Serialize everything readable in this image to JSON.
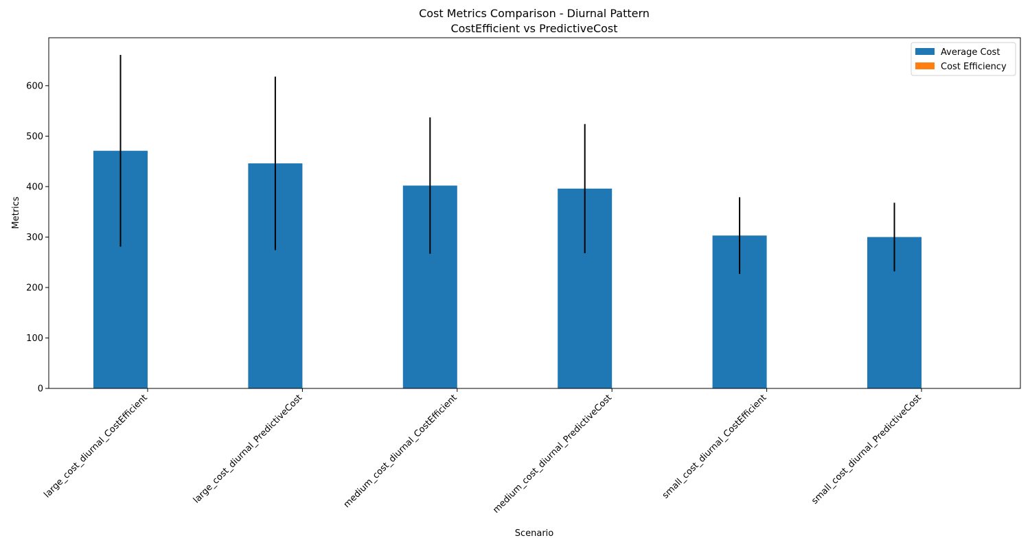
{
  "chart_data": {
    "type": "bar",
    "title": "Cost Metrics Comparison - Diurnal Pattern",
    "subtitle": "CostEfficient vs PredictiveCost",
    "xlabel": "Scenario",
    "ylabel": "Metrics",
    "ylim": [
      0,
      695
    ],
    "yticks": [
      0,
      100,
      200,
      300,
      400,
      500,
      600
    ],
    "categories": [
      "large_cost_diurnal_CostEfficient",
      "large_cost_diurnal_PredictiveCost",
      "medium_cost_diurnal_CostEfficient",
      "medium_cost_diurnal_PredictiveCost",
      "small_cost_diurnal_CostEfficient",
      "small_cost_diurnal_PredictiveCost"
    ],
    "series": [
      {
        "name": "Average Cost",
        "color": "#1f77b4",
        "values": [
          471,
          446,
          402,
          396,
          303,
          300
        ],
        "error": [
          190,
          172,
          135,
          128,
          76,
          68
        ]
      },
      {
        "name": "Cost Efficiency",
        "color": "#ff7f0e",
        "values": [
          0,
          0,
          0,
          0,
          0,
          0
        ],
        "error": [
          0,
          0,
          0,
          0,
          0,
          0
        ]
      }
    ],
    "legend_position": "top-right",
    "grid": false
  }
}
